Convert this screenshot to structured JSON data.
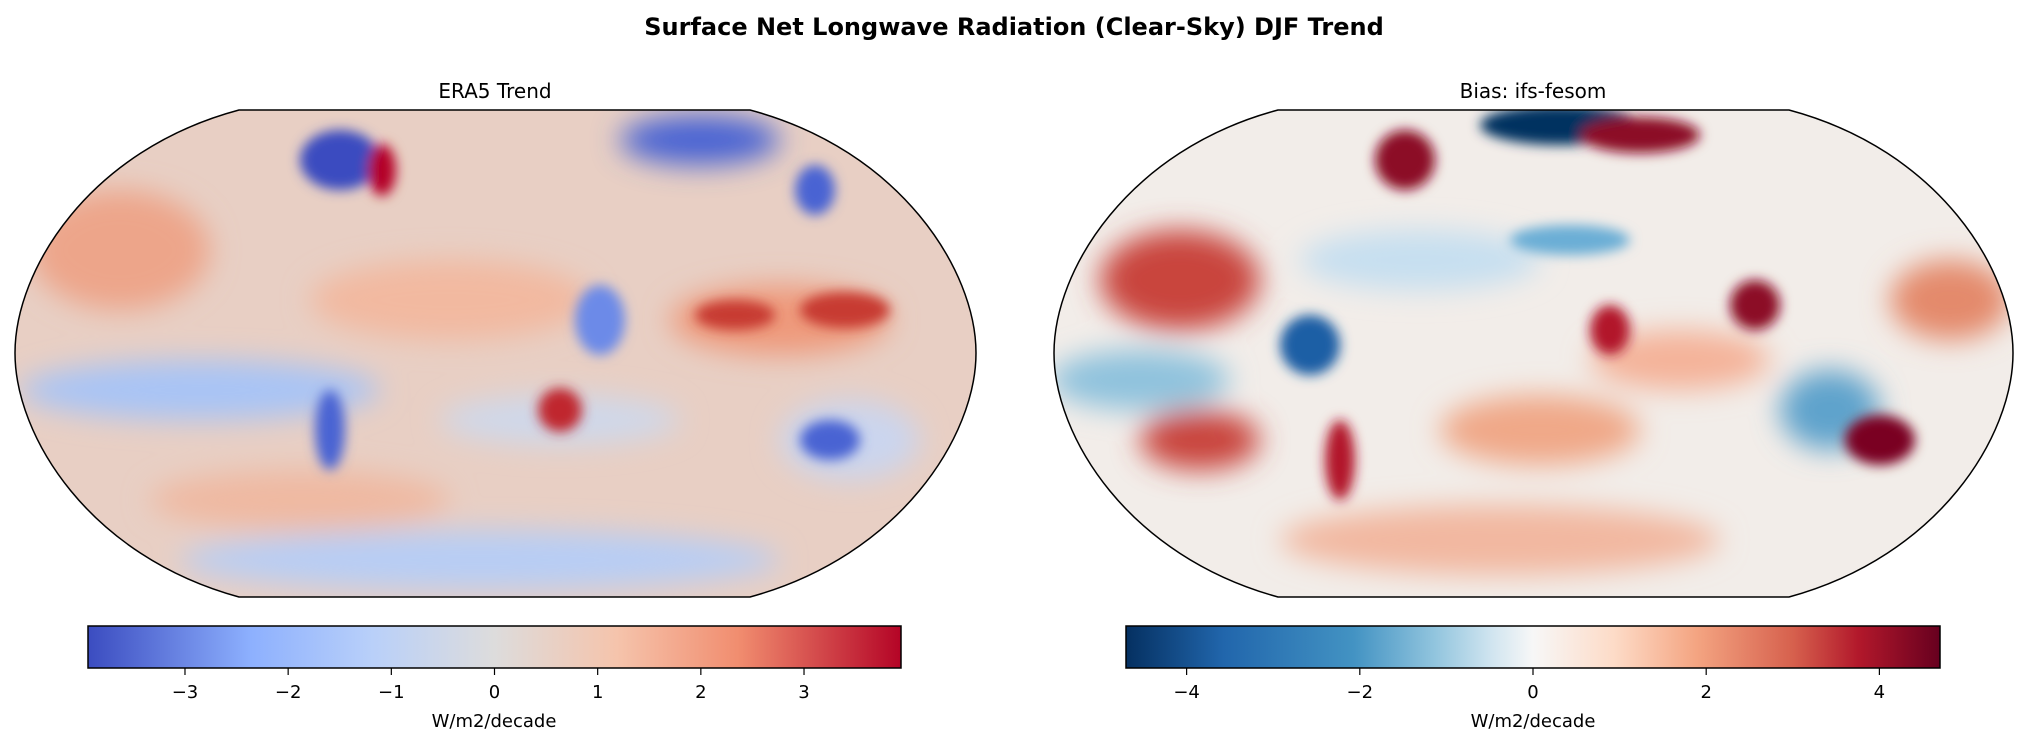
{
  "chart_data": [
    {
      "type": "heatmap",
      "suptitle": "Surface Net Longwave Radiation (Clear-Sky) DJF Trend",
      "title": "ERA5 Trend",
      "projection": "Robinson",
      "colormap": "coolwarm",
      "colors": {
        "low": "#3b4cc0",
        "mid": "#dddddd",
        "high": "#b40426"
      },
      "colorbar": {
        "label": "W/m2/decade",
        "range": [
          -3.94,
          3.94
        ],
        "ticks": [
          -3,
          -2,
          -1,
          0,
          1,
          2,
          3
        ],
        "tick_labels": [
          "−3",
          "−2",
          "−1",
          "0",
          "1",
          "2",
          "3"
        ],
        "orientation": "horizontal"
      }
    },
    {
      "type": "heatmap",
      "title": "Bias: ifs-fesom",
      "projection": "Robinson",
      "colormap": "RdBu_r",
      "colors": {
        "low": "#053061",
        "mid": "#f7f7f7",
        "high": "#67001f"
      },
      "colorbar": {
        "label": "W/m2/decade",
        "range": [
          -4.7,
          4.7
        ],
        "ticks": [
          -4,
          -2,
          0,
          2,
          4
        ],
        "tick_labels": [
          "−4",
          "−2",
          "0",
          "2",
          "4"
        ],
        "orientation": "horizontal"
      }
    }
  ]
}
